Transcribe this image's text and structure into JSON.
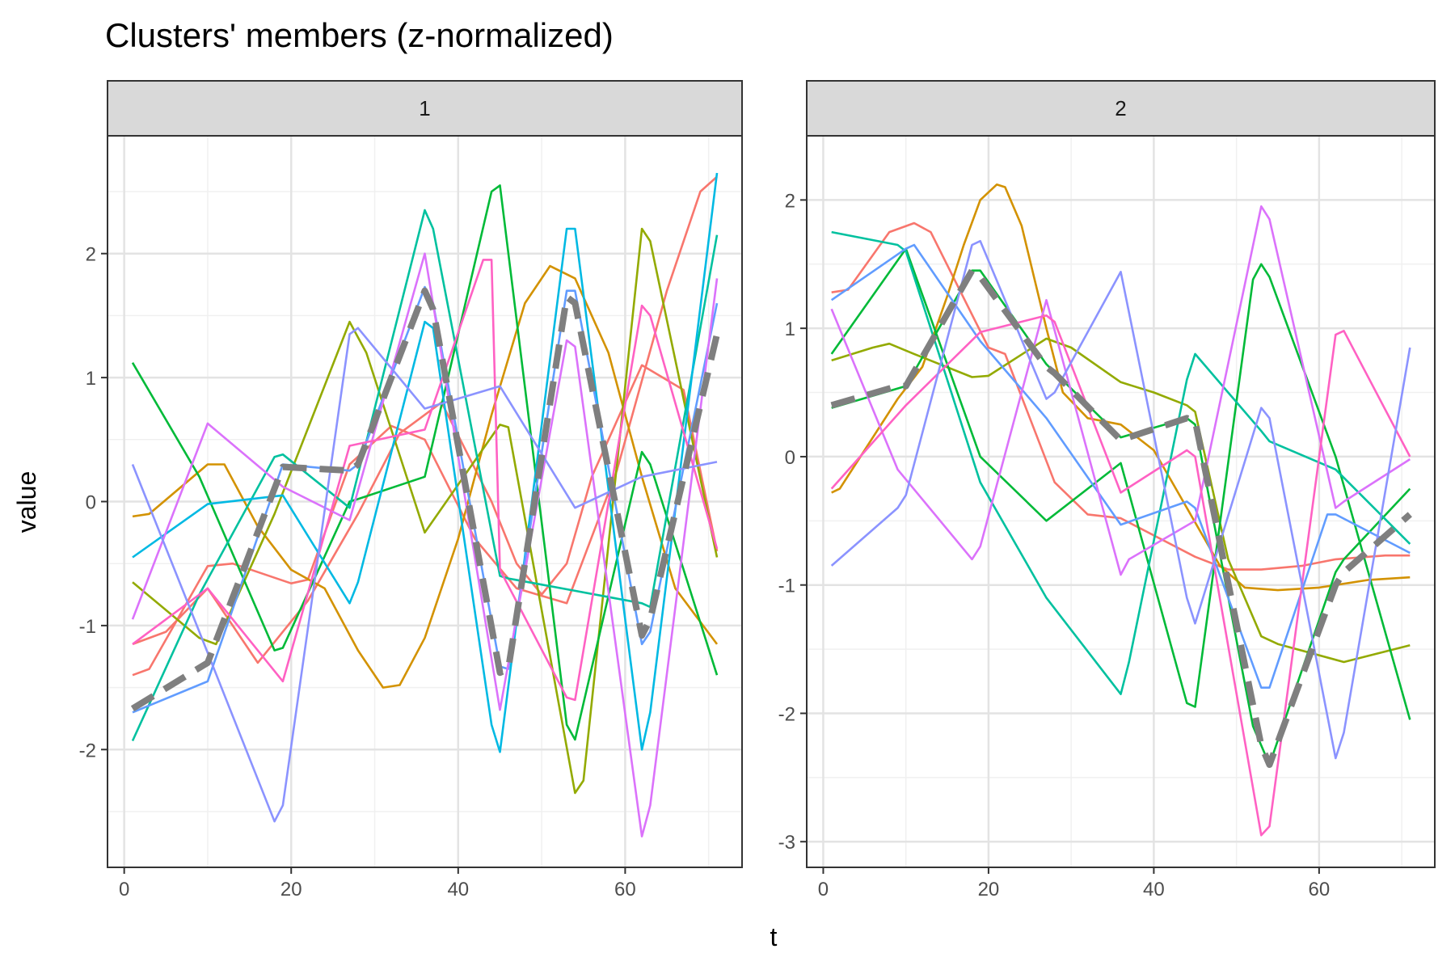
{
  "chart_data": {
    "type": "line",
    "title": "Clusters' members (z-normalized)",
    "xlabel": "t",
    "ylabel": "value",
    "grid": true,
    "legend": "none",
    "panels": [
      {
        "label": "1",
        "xlim": [
          -2,
          74
        ],
        "ylim": [
          -2.95,
          2.95
        ],
        "xticks": [
          0,
          20,
          40,
          60
        ],
        "yticks": [
          -2,
          -1,
          0,
          1,
          2
        ],
        "series": [
          {
            "color": "#F8766D",
            "x": [
              1,
              3,
              10,
              13,
              20,
              22,
              27,
              32,
              36,
              42,
              47,
              53,
              59,
              65,
              69,
              71
            ],
            "y": [
              -1.4,
              -1.35,
              -0.52,
              -0.5,
              -0.66,
              -0.63,
              0.3,
              0.61,
              0.5,
              -0.3,
              -0.7,
              -0.82,
              0.25,
              1.7,
              2.5,
              2.62
            ]
          },
          {
            "color": "#F8766D",
            "x": [
              1,
              5,
              10,
              16,
              22,
              28,
              33,
              38,
              44,
              47,
              50,
              53,
              56,
              62,
              67,
              71
            ],
            "y": [
              -1.15,
              -1.05,
              -0.7,
              -1.3,
              -0.8,
              -0.1,
              0.55,
              0.8,
              0.0,
              -0.5,
              -0.75,
              -0.5,
              0.2,
              1.1,
              0.9,
              -0.4
            ]
          },
          {
            "color": "#D39200",
            "x": [
              1,
              3,
              10,
              12,
              16,
              20,
              24,
              28,
              31,
              33,
              36,
              40,
              44,
              48,
              51,
              54,
              58,
              62,
              66,
              71
            ],
            "y": [
              -0.12,
              -0.1,
              0.3,
              0.3,
              -0.2,
              -0.55,
              -0.7,
              -1.2,
              -1.5,
              -1.48,
              -1.1,
              -0.3,
              0.7,
              1.6,
              1.9,
              1.8,
              1.2,
              0.2,
              -0.7,
              -1.15
            ]
          },
          {
            "color": "#93AA00",
            "x": [
              1,
              9,
              11,
              18,
              27,
              29,
              36,
              45,
              46,
              54,
              55,
              62,
              63,
              71
            ],
            "y": [
              -0.65,
              -1.1,
              -1.15,
              -0.1,
              1.45,
              1.2,
              -0.25,
              0.62,
              0.6,
              -2.35,
              -2.25,
              2.2,
              2.1,
              -0.45
            ]
          },
          {
            "color": "#00BA38",
            "x": [
              1,
              9,
              18,
              19,
              27,
              28,
              36,
              44,
              45,
              53,
              54,
              62,
              63,
              71
            ],
            "y": [
              1.12,
              0.2,
              -1.2,
              -1.18,
              0.0,
              0.02,
              0.2,
              2.5,
              2.55,
              -1.8,
              -1.92,
              0.4,
              0.3,
              -1.4
            ]
          },
          {
            "color": "#00C19F",
            "x": [
              1,
              9,
              18,
              19,
              27,
              36,
              37,
              45,
              46,
              54,
              62,
              63,
              71
            ],
            "y": [
              -1.93,
              -0.75,
              0.36,
              0.38,
              -0.05,
              2.35,
              2.2,
              -0.6,
              -0.62,
              -0.72,
              -0.82,
              -0.85,
              2.15
            ]
          },
          {
            "color": "#00B9E3",
            "x": [
              1,
              10,
              19,
              27,
              28,
              36,
              37,
              44,
              45,
              53,
              54,
              62,
              63,
              71
            ],
            "y": [
              -0.45,
              -0.02,
              0.05,
              -0.82,
              -0.65,
              1.45,
              1.4,
              -1.8,
              -2.02,
              2.2,
              2.2,
              -2.0,
              -1.7,
              2.65
            ]
          },
          {
            "color": "#619CFF",
            "x": [
              1,
              10,
              19,
              27,
              28,
              36,
              37,
              45,
              46,
              53,
              54,
              62,
              63,
              71
            ],
            "y": [
              -1.7,
              -1.45,
              0.3,
              0.25,
              0.3,
              1.73,
              1.6,
              -1.33,
              -1.35,
              1.7,
              1.7,
              -1.15,
              -1.05,
              1.6
            ]
          },
          {
            "color": "#DB72FB",
            "x": [
              1,
              10,
              19,
              27,
              36,
              45,
              53,
              54,
              62,
              63,
              71
            ],
            "y": [
              -0.95,
              0.63,
              0.12,
              -0.15,
              2.0,
              -1.68,
              1.3,
              1.25,
              -2.7,
              -2.45,
              1.8
            ]
          },
          {
            "color": "#FF61C3",
            "x": [
              1,
              10,
              19,
              27,
              36,
              43,
              44,
              45,
              53,
              54,
              62,
              63,
              71
            ],
            "y": [
              -1.15,
              -0.7,
              -1.45,
              0.45,
              0.58,
              1.95,
              1.95,
              -0.55,
              -1.58,
              -1.6,
              1.58,
              1.5,
              -0.38
            ]
          },
          {
            "color": "#8B93FF",
            "x": [
              1,
              9,
              18,
              19,
              27,
              28,
              36,
              45,
              54,
              62,
              71
            ],
            "y": [
              0.3,
              -1.05,
              -2.58,
              -2.45,
              1.35,
              1.4,
              0.75,
              0.93,
              -0.05,
              0.2,
              0.32
            ]
          },
          {
            "color": "#7F7F7F",
            "dashed": true,
            "x": [
              1,
              10,
              19,
              27,
              28,
              36,
              37,
              45,
              46,
              53,
              54,
              62,
              63,
              71
            ],
            "y": [
              -1.67,
              -1.3,
              0.28,
              0.25,
              0.3,
              1.7,
              1.55,
              -1.38,
              -1.35,
              1.65,
              1.6,
              -1.08,
              -0.95,
              1.35
            ]
          }
        ]
      },
      {
        "label": "2",
        "xlim": [
          -2,
          74
        ],
        "ylim": [
          -3.2,
          2.5
        ],
        "xticks": [
          0,
          20,
          40,
          60
        ],
        "yticks": [
          -3,
          -2,
          -1,
          0,
          1,
          2
        ],
        "series": [
          {
            "color": "#F8766D",
            "x": [
              1,
              3,
              8,
              11,
              13,
              20,
              22,
              28,
              32,
              36,
              45,
              49,
              53,
              58,
              62,
              68,
              71
            ],
            "y": [
              1.28,
              1.3,
              1.75,
              1.82,
              1.75,
              0.85,
              0.8,
              -0.2,
              -0.45,
              -0.48,
              -0.78,
              -0.88,
              -0.88,
              -0.85,
              -0.8,
              -0.77,
              -0.77
            ]
          },
          {
            "color": "#D39200",
            "x": [
              1,
              2,
              5,
              9,
              12,
              15,
              17,
              19,
              21,
              22,
              24,
              27,
              29,
              32,
              36,
              40,
              44,
              48,
              51,
              55,
              60,
              66,
              71
            ],
            "y": [
              -0.28,
              -0.25,
              0.05,
              0.45,
              0.7,
              1.25,
              1.65,
              2.0,
              2.12,
              2.1,
              1.8,
              1.0,
              0.5,
              0.3,
              0.25,
              0.05,
              -0.4,
              -0.85,
              -1.02,
              -1.04,
              -1.02,
              -0.96,
              -0.94
            ]
          },
          {
            "color": "#93AA00",
            "x": [
              1,
              6,
              8,
              11,
              18,
              20,
              27,
              30,
              36,
              40,
              44,
              45,
              49,
              53,
              55,
              63,
              71
            ],
            "y": [
              0.75,
              0.85,
              0.88,
              0.8,
              0.62,
              0.63,
              0.92,
              0.85,
              0.58,
              0.5,
              0.4,
              0.35,
              -0.8,
              -1.4,
              -1.46,
              -1.6,
              -1.47
            ]
          },
          {
            "color": "#00BA38",
            "x": [
              1,
              10,
              19,
              27,
              36,
              44,
              45,
              52,
              53,
              54,
              62,
              71
            ],
            "y": [
              0.8,
              1.62,
              0.0,
              -0.5,
              -0.05,
              -1.92,
              -1.95,
              1.38,
              1.5,
              1.4,
              0.0,
              -2.05
            ]
          },
          {
            "color": "#00BA38",
            "x": [
              1,
              10,
              18,
              19,
              27,
              36,
              44,
              45,
              52,
              54,
              62,
              63,
              71
            ],
            "y": [
              0.38,
              0.55,
              1.45,
              1.45,
              0.72,
              0.15,
              0.3,
              0.25,
              -2.1,
              -2.4,
              -0.9,
              -0.8,
              -0.25
            ]
          },
          {
            "color": "#00C19F",
            "x": [
              1,
              9,
              10,
              19,
              27,
              36,
              37,
              44,
              45,
              53,
              54,
              62,
              71
            ],
            "y": [
              1.75,
              1.65,
              1.6,
              -0.2,
              -1.1,
              -1.85,
              -1.6,
              0.6,
              0.8,
              0.2,
              0.12,
              -0.1,
              -0.68
            ]
          },
          {
            "color": "#619CFF",
            "x": [
              1,
              10,
              11,
              19,
              27,
              36,
              44,
              45,
              53,
              54,
              61,
              62,
              71
            ],
            "y": [
              1.22,
              1.62,
              1.65,
              0.9,
              0.3,
              -0.53,
              -0.35,
              -0.4,
              -1.8,
              -1.8,
              -0.45,
              -0.45,
              -0.75
            ]
          },
          {
            "color": "#DB72FB",
            "x": [
              1,
              9,
              18,
              19,
              27,
              36,
              37,
              45,
              53,
              54,
              62,
              63,
              71
            ],
            "y": [
              1.15,
              -0.1,
              -0.8,
              -0.7,
              1.22,
              -0.92,
              -0.8,
              -0.5,
              1.95,
              1.85,
              -0.4,
              -0.35,
              -0.02
            ]
          },
          {
            "color": "#FF61C3",
            "x": [
              1,
              10,
              19,
              27,
              28,
              36,
              44,
              45,
              53,
              54,
              62,
              63,
              71
            ],
            "y": [
              -0.25,
              0.4,
              0.97,
              1.1,
              1.05,
              -0.28,
              0.05,
              0.0,
              -2.95,
              -2.88,
              0.95,
              0.98,
              0.0
            ]
          },
          {
            "color": "#8B93FF",
            "x": [
              1,
              9,
              10,
              18,
              19,
              27,
              28,
              36,
              44,
              45,
              53,
              54,
              62,
              63,
              71
            ],
            "y": [
              -0.85,
              -0.4,
              -0.3,
              1.65,
              1.68,
              0.45,
              0.5,
              1.44,
              -1.1,
              -1.3,
              0.38,
              0.3,
              -2.35,
              -2.15,
              0.85
            ]
          },
          {
            "color": "#7F7F7F",
            "dashed": true,
            "x": [
              1,
              9,
              10,
              18,
              19,
              27,
              28,
              36,
              44,
              45,
              53,
              54,
              62,
              63,
              71
            ],
            "y": [
              0.4,
              0.55,
              0.55,
              1.45,
              1.4,
              0.7,
              0.65,
              0.13,
              0.3,
              0.28,
              -2.25,
              -2.4,
              -1.0,
              -0.9,
              -0.45
            ]
          }
        ]
      }
    ]
  }
}
